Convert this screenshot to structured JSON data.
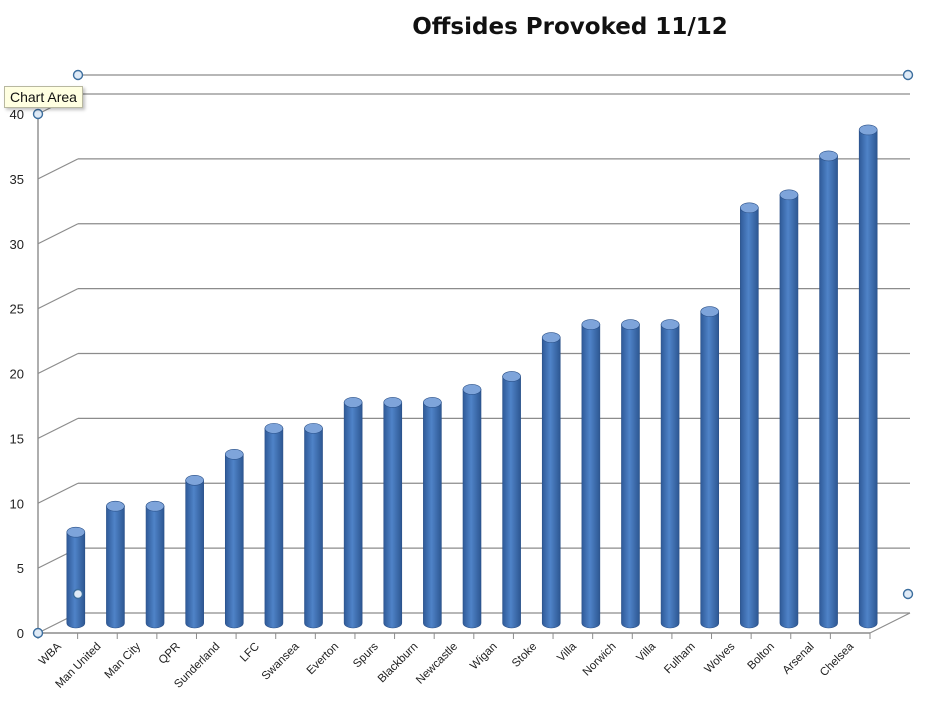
{
  "tooltip": "Chart Area",
  "chart_data": {
    "type": "bar",
    "title": "Offsides Provoked 11/12",
    "xlabel": "",
    "ylabel": "",
    "ylim": [
      0,
      40
    ],
    "yticks": [
      0,
      5,
      10,
      15,
      20,
      25,
      30,
      35,
      40
    ],
    "grid": true,
    "categories": [
      "WBA",
      "Man United",
      "Man City",
      "QPR",
      "Sunderland",
      "LFC",
      "Swansea",
      "Everton",
      "Spurs",
      "Blackburn",
      "Newcastle",
      "Wigan",
      "Stoke",
      "Villa",
      "Norwich",
      "Villa",
      "Fulham",
      "Wolves",
      "Bolton",
      "Arsenal",
      "Chelsea"
    ],
    "values": [
      7,
      9,
      9,
      11,
      13,
      15,
      15,
      17,
      17,
      17,
      18,
      19,
      22,
      23,
      23,
      23,
      24,
      32,
      33,
      36,
      38
    ],
    "colors": {
      "bar": "#4a7cc0",
      "bar_dark": "#2f5a98",
      "bar_light": "#7ea4da",
      "grid": "#8c8c8c"
    }
  }
}
